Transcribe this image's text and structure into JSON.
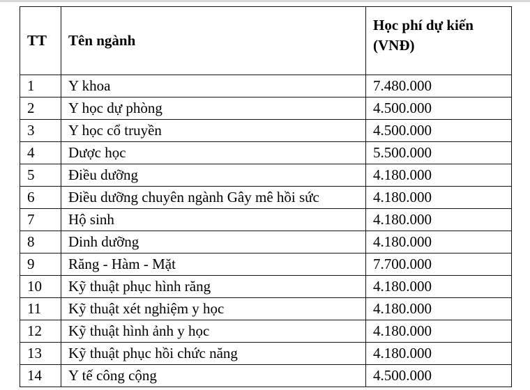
{
  "table": {
    "headers": [
      "TT",
      "Tên ngành",
      "Học phí dự kiến (VNĐ)"
    ],
    "rows": [
      [
        "1",
        "Y khoa",
        "7.480.000"
      ],
      [
        "2",
        "Y học dự phòng",
        "4.500.000"
      ],
      [
        "3",
        "Y học cổ truyền",
        "4.500.000"
      ],
      [
        "4",
        "Dược học",
        "5.500.000"
      ],
      [
        "5",
        "Điều dưỡng",
        "4.180.000"
      ],
      [
        "6",
        "Điều dưỡng chuyên ngành Gây mê hồi sức",
        "4.180.000"
      ],
      [
        "7",
        "Hộ sinh",
        "4.180.000"
      ],
      [
        "8",
        "Dinh dưỡng",
        "4.180.000"
      ],
      [
        "9",
        "Răng - Hàm - Mặt",
        "7.700.000"
      ],
      [
        "10",
        "Kỹ thuật phục hình răng",
        "4.180.000"
      ],
      [
        "11",
        "Kỹ thuật xét nghiệm y học",
        "4.180.000"
      ],
      [
        "12",
        "Kỹ thuật hình ảnh y học",
        "4.180.000"
      ],
      [
        "13",
        "Kỹ thuật phục hồi chức năng",
        "4.180.000"
      ],
      [
        "14",
        "Y tế công cộng",
        "4.500.000"
      ]
    ]
  }
}
